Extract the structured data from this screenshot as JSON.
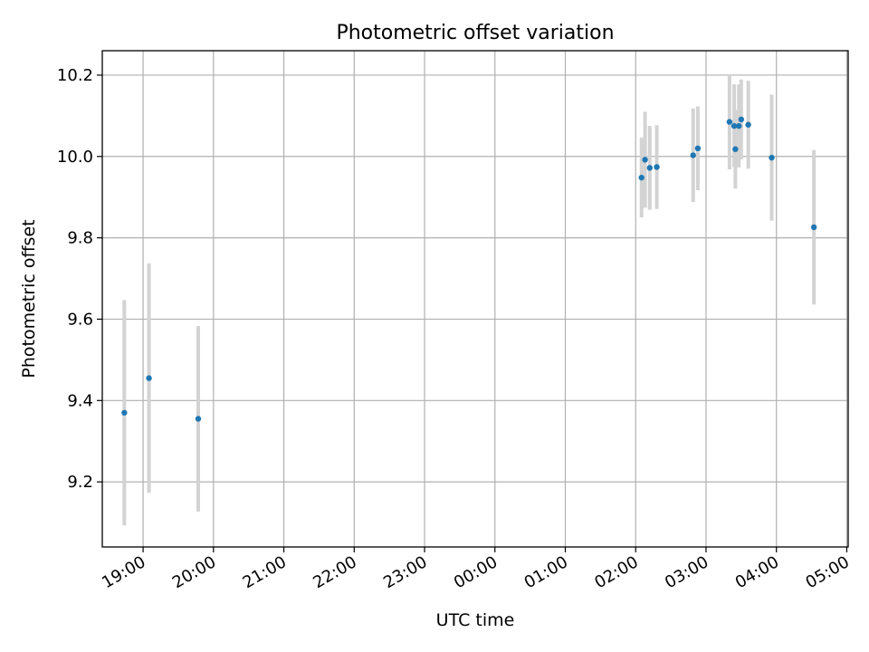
{
  "chart_data": {
    "type": "scatter",
    "title": "Photometric offset variation",
    "xlabel": "UTC time",
    "ylabel": "Photometric offset",
    "grid": true,
    "x_tick_labels": [
      "19:00",
      "20:00",
      "21:00",
      "22:00",
      "23:00",
      "00:00",
      "01:00",
      "02:00",
      "03:00",
      "04:00",
      "05:00"
    ],
    "y_tick_labels": [
      "9.2",
      "9.4",
      "9.6",
      "9.8",
      "10.0",
      "10.2"
    ],
    "x_axis_hours": {
      "ticks_start": 19,
      "range": [
        18.42,
        29.02
      ]
    },
    "ylim": [
      9.04,
      10.26
    ],
    "y_ticks": [
      9.2,
      9.4,
      9.6,
      9.8,
      10.0,
      10.2
    ],
    "colors": {
      "point": "#1f77b4",
      "errorbar": "#d3d3d3",
      "grid": "#b0b0b0"
    },
    "points": [
      {
        "time": "18:44",
        "y": 9.37,
        "err": 0.277
      },
      {
        "time": "19:05",
        "y": 9.455,
        "err": 0.282
      },
      {
        "time": "19:47",
        "y": 9.355,
        "err": 0.228
      },
      {
        "time": "02:05",
        "y": 9.948,
        "err": 0.098
      },
      {
        "time": "02:08",
        "y": 9.992,
        "err": 0.118
      },
      {
        "time": "02:12",
        "y": 9.972,
        "err": 0.103
      },
      {
        "time": "02:18",
        "y": 9.974,
        "err": 0.103
      },
      {
        "time": "02:49",
        "y": 10.003,
        "err": 0.115
      },
      {
        "time": "02:53",
        "y": 10.02,
        "err": 0.103
      },
      {
        "time": "03:20",
        "y": 10.085,
        "err": 0.117
      },
      {
        "time": "03:24",
        "y": 10.075,
        "err": 0.102
      },
      {
        "time": "03:25",
        "y": 10.018,
        "err": 0.097
      },
      {
        "time": "03:28",
        "y": 10.075,
        "err": 0.102
      },
      {
        "time": "03:30",
        "y": 10.091,
        "err": 0.098
      },
      {
        "time": "03:36",
        "y": 10.078,
        "err": 0.108
      },
      {
        "time": "03:56",
        "y": 9.997,
        "err": 0.155
      },
      {
        "time": "04:32",
        "y": 9.826,
        "err": 0.19
      }
    ]
  }
}
